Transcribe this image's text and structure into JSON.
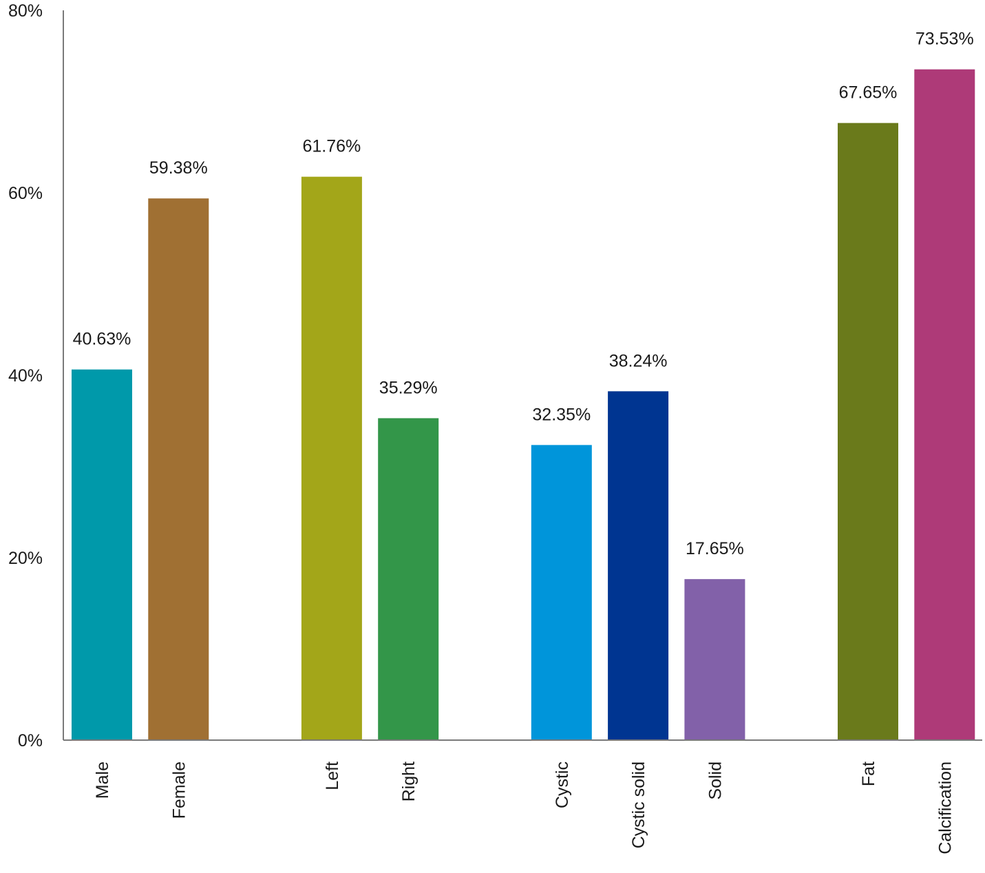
{
  "chart_data": {
    "type": "bar",
    "title": "",
    "xlabel": "",
    "ylabel": "",
    "ylim": [
      0,
      80
    ],
    "grid": false,
    "y_ticks": [
      {
        "value": 0,
        "label": "0%"
      },
      {
        "value": 20,
        "label": "20%"
      },
      {
        "value": 40,
        "label": "40%"
      },
      {
        "value": 60,
        "label": "60%"
      },
      {
        "value": 80,
        "label": "80%"
      }
    ],
    "groups": [
      {
        "bars": [
          {
            "category": "Male",
            "value": 40.63,
            "label": "40.63%",
            "color": "#0099AA"
          },
          {
            "category": "Female",
            "value": 59.38,
            "label": "59.38%",
            "color": "#A07033"
          }
        ]
      },
      {
        "bars": [
          {
            "category": "Left",
            "value": 61.76,
            "label": "61.76%",
            "color": "#A3A619"
          },
          {
            "category": "Right",
            "value": 35.29,
            "label": "35.29%",
            "color": "#339649"
          }
        ]
      },
      {
        "bars": [
          {
            "category": "Cystic",
            "value": 32.35,
            "label": "32.35%",
            "color": "#0095DA"
          },
          {
            "category": "Cystic solid",
            "value": 38.24,
            "label": "38.24%",
            "color": "#003591"
          },
          {
            "category": "Solid",
            "value": 17.65,
            "label": "17.65%",
            "color": "#8261A9"
          }
        ]
      },
      {
        "bars": [
          {
            "category": "Fat",
            "value": 67.65,
            "label": "67.65%",
            "color": "#6A7A1B"
          },
          {
            "category": "Calcification",
            "value": 73.53,
            "label": "73.53%",
            "color": "#AE3A78"
          }
        ]
      }
    ]
  }
}
